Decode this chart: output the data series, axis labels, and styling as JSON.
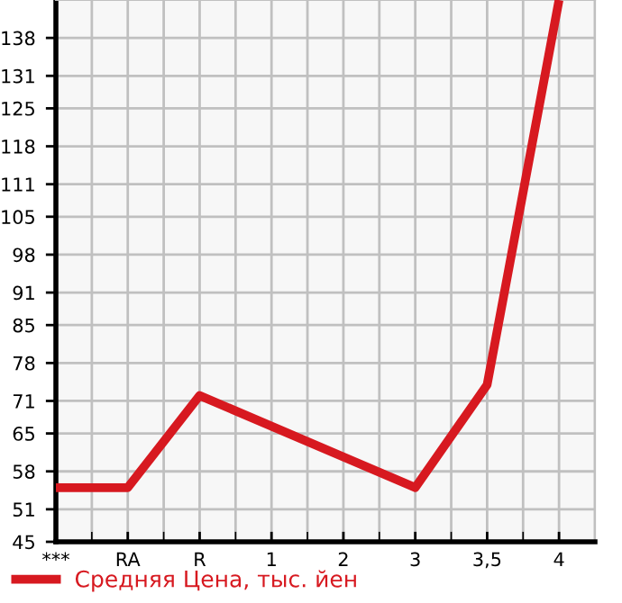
{
  "chart_data": {
    "type": "line",
    "categories": [
      "***",
      "RA",
      "R",
      "1",
      "2",
      "3",
      "3,5",
      "4"
    ],
    "series": [
      {
        "name": "Средняя Цена, тыс. йен",
        "color": "#d71920",
        "values": [
          55,
          55,
          72,
          null,
          null,
          55,
          74,
          145
        ]
      }
    ],
    "ylim": [
      45,
      145
    ],
    "yticks": [
      45,
      51,
      58,
      65,
      71,
      78,
      85,
      91,
      98,
      105,
      111,
      118,
      125,
      131,
      138
    ],
    "grid": true,
    "legend": "bottom left",
    "marker": "none",
    "line_style": "solid"
  }
}
